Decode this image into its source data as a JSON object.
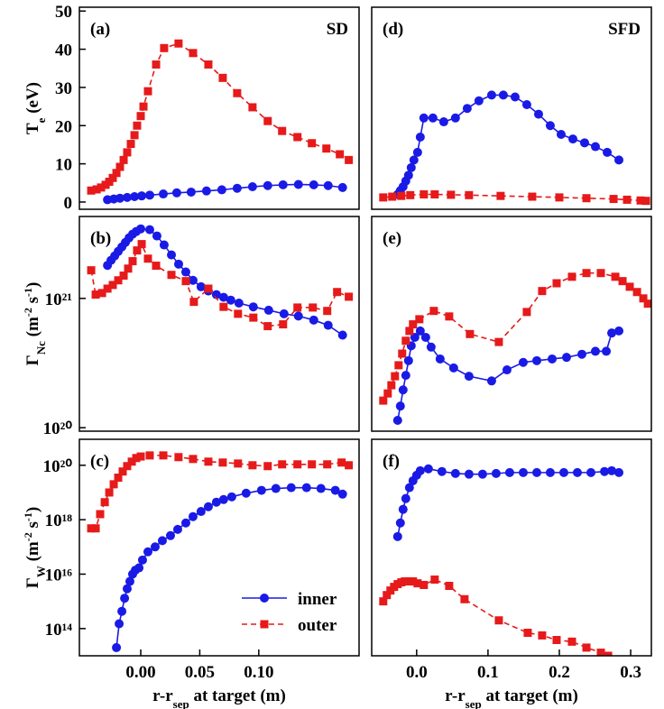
{
  "chart_data": [
    {
      "type": "line",
      "panel_label": "(a)",
      "annotation": "SD",
      "ylabel": [
        {
          "text": "T"
        },
        {
          "text": "e",
          "sub": true
        },
        {
          "text": " (eV)"
        }
      ],
      "xlim": [
        -0.052,
        0.185
      ],
      "ylim": [
        -1.9,
        51
      ],
      "yticks": [
        0,
        10,
        20,
        30,
        40,
        50
      ],
      "log": false,
      "series": [
        {
          "name": "inner",
          "color": "#1a1ae6",
          "marker": "circle",
          "dash": false,
          "x": [
            -0.0282,
            -0.0229,
            -0.0176,
            -0.0115,
            -0.0053,
            0.0008,
            0.0076,
            0.0191,
            0.0305,
            0.0427,
            0.0557,
            0.0687,
            0.0817,
            0.0947,
            0.1076,
            0.1206,
            0.1336,
            0.1466,
            0.1588,
            0.171
          ],
          "values": [
            0.6,
            0.8,
            1,
            1.2,
            1.4,
            1.6,
            1.8,
            2.1,
            2.4,
            2.6,
            2.9,
            3.2,
            3.6,
            4,
            4.3,
            4.5,
            4.6,
            4.5,
            4.3,
            3.8
          ]
        },
        {
          "name": "outer",
          "color": "#e61a1a",
          "marker": "square",
          "dash": true,
          "x": [
            -0.042,
            -0.0374,
            -0.0336,
            -0.0298,
            -0.0267,
            -0.0237,
            -0.0206,
            -0.0176,
            -0.0145,
            -0.0115,
            -0.0084,
            -0.0053,
            -0.0031,
            0,
            0.0023,
            0.0061,
            0.013,
            0.0198,
            0.032,
            0.0443,
            0.0573,
            0.0695,
            0.0817,
            0.0947,
            0.1076,
            0.1198,
            0.1328,
            0.145,
            0.1573,
            0.1687,
            0.1763
          ],
          "values": [
            3,
            3.3,
            3.8,
            4.5,
            5.3,
            6.3,
            7.6,
            9.2,
            11,
            13,
            15.2,
            17.5,
            20,
            22.5,
            25,
            29,
            36,
            40.3,
            41.5,
            39,
            36,
            32.5,
            28.5,
            24.8,
            21.2,
            18.6,
            17,
            15.4,
            14,
            12.5,
            11
          ]
        }
      ]
    },
    {
      "type": "line",
      "panel_label": "(b)",
      "ylabel": [
        {
          "text": "Γ"
        },
        {
          "text": "Nc",
          "sub": true
        },
        {
          "text": " (m"
        },
        {
          "text": "-2",
          "sup": true
        },
        {
          "text": " s"
        },
        {
          "text": "-1",
          "sup": true
        },
        {
          "text": ")"
        }
      ],
      "xlim": [
        -0.052,
        0.185
      ],
      "ylim": [
        9.4e+19,
        4.3e+21
      ],
      "yticks": [
        {
          "value": 1e+20,
          "label": "10²⁰"
        },
        {
          "value": 1e+21,
          "label": "10²¹"
        }
      ],
      "log": true,
      "series": [
        {
          "name": "inner",
          "color": "#1a1ae6",
          "marker": "circle",
          "dash": false,
          "x": [
            -0.0282,
            -0.0252,
            -0.0221,
            -0.0191,
            -0.016,
            -0.013,
            -0.0099,
            -0.0069,
            -0.0038,
            0,
            0.0076,
            0.0137,
            0.0198,
            0.026,
            0.0321,
            0.0382,
            0.0443,
            0.0511,
            0.0573,
            0.0641,
            0.0702,
            0.0763,
            0.0832,
            0.0954,
            0.1084,
            0.1214,
            0.1336,
            0.1466,
            0.1588,
            0.171
          ],
          "values": [
            1.8e+21,
            1.97e+21,
            2.13e+21,
            2.31e+21,
            2.5e+21,
            2.71e+21,
            2.94e+21,
            3.14e+21,
            3.29e+21,
            3.45e+21,
            3.4e+21,
            3.04e+21,
            2.59e+21,
            2.17e+21,
            1.84e+21,
            1.6e+21,
            1.38e+21,
            1.23e+21,
            1.14e+21,
            1.07e+21,
            1.02e+21,
            9.7e+20,
            9.2e+20,
            8.6e+20,
            8.1e+20,
            7.6e+20,
            7.3e+20,
            6.8e+20,
            6.2e+20,
            5.2e+20
          ]
        },
        {
          "name": "outer",
          "color": "#e61a1a",
          "marker": "square",
          "dash": true,
          "x": [
            -0.042,
            -0.0382,
            -0.0328,
            -0.0282,
            -0.0237,
            -0.0191,
            -0.0145,
            -0.0107,
            -0.0069,
            -0.0031,
            0.0008,
            0.0061,
            0.013,
            0.026,
            0.0382,
            0.045,
            0.0573,
            0.0702,
            0.0824,
            0.0954,
            0.1076,
            0.1206,
            0.1328,
            0.1458,
            0.158,
            0.1664,
            0.1763
          ],
          "values": [
            1.65e+21,
            1.07e+21,
            1.1e+21,
            1.19e+21,
            1.27e+21,
            1.38e+21,
            1.5e+21,
            1.7e+21,
            1.94e+21,
            2.35e+21,
            2.63e+21,
            2.03e+21,
            1.79e+21,
            1.52e+21,
            1.36e+21,
            9.4e+20,
            1.19e+21,
            8.6e+20,
            7.6e+20,
            7.1e+20,
            6.1e+20,
            6.3e+20,
            8.5e+20,
            8.5e+20,
            8e+20,
            1.12e+21,
            1.03e+21
          ]
        }
      ]
    },
    {
      "type": "line",
      "panel_label": "(c)",
      "ylabel": [
        {
          "text": "Γ"
        },
        {
          "text": "W",
          "sub": true
        },
        {
          "text": " (m"
        },
        {
          "text": "-2",
          "sup": true
        },
        {
          "text": " s"
        },
        {
          "text": "-1",
          "sup": true
        },
        {
          "text": ")"
        }
      ],
      "xlabel": [
        {
          "text": "r-r"
        },
        {
          "text": "sep",
          "sub": true
        },
        {
          "text": " at target (m)"
        }
      ],
      "xlim": [
        -0.052,
        0.185
      ],
      "xticks": [
        {
          "value": 0,
          "label": "0.00"
        },
        0.05,
        {
          "value": 0.1,
          "label": "0.10"
        }
      ],
      "ylim": [
        10000000000000.0,
        9e+20
      ],
      "yticks": [
        {
          "value": 100000000000000.0,
          "label": "10¹⁴"
        },
        {
          "value": 1e+16,
          "label": "10¹⁶"
        },
        {
          "value": 1e+18,
          "label": "10¹⁸"
        },
        {
          "value": 1e+20,
          "label": "10²⁰"
        }
      ],
      "log": true,
      "legend": "lower right",
      "series": [
        {
          "name": "inner",
          "color": "#1a1ae6",
          "marker": "circle",
          "dash": false,
          "x": [
            -0.0206,
            -0.0183,
            -0.016,
            -0.0137,
            -0.0115,
            -0.0092,
            -0.0069,
            -0.0046,
            -0.0015,
            0.0015,
            0.0061,
            0.0122,
            0.0183,
            0.0252,
            0.0313,
            0.0382,
            0.0443,
            0.0511,
            0.0573,
            0.0641,
            0.0702,
            0.0771,
            0.0893,
            0.1023,
            0.1145,
            0.1275,
            0.1405,
            0.1527,
            0.1649,
            0.171
          ],
          "values": [
            20000000000000.0,
            150000000000000.0,
            430000000000000.0,
            1300000000000000.0,
            2900000000000000.0,
            5400000000000000.0,
            1e+16,
            1.4e+16,
            1.7e+16,
            3.3e+16,
            6.6e+16,
            1e+17,
            1.7e+17,
            2.6e+17,
            4.4e+17,
            7.6e+17,
            1.3e+18,
            2e+18,
            3e+18,
            4.4e+18,
            5.5e+18,
            6.9e+18,
            9.4e+18,
            1.2e+19,
            1.4e+19,
            1.5e+19,
            1.5e+19,
            1.4e+19,
            1.2e+19,
            8.7e+18
          ]
        },
        {
          "name": "outer",
          "color": "#e61a1a",
          "marker": "square",
          "dash": true,
          "x": [
            -0.042,
            -0.0382,
            -0.0344,
            -0.0305,
            -0.0267,
            -0.0229,
            -0.0191,
            -0.0153,
            -0.0115,
            -0.0076,
            -0.0038,
            0,
            0.0076,
            0.0191,
            0.032,
            0.0443,
            0.0573,
            0.0695,
            0.0824,
            0.0947,
            0.1076,
            0.1198,
            0.1328,
            0.145,
            0.158,
            0.1702,
            0.1763
          ],
          "values": [
            4.8e+17,
            4.8e+17,
            1.6e+18,
            4.4e+18,
            1e+19,
            2e+19,
            3.5e+19,
            5.9e+19,
            9.3e+19,
            1.36e+20,
            1.84e+20,
            2.1e+20,
            2.3e+20,
            2.3e+20,
            1.99e+20,
            1.7e+20,
            1.36e+20,
            1.26e+20,
            1.16e+20,
            1e+20,
            9.3e+19,
            1.08e+20,
            1.08e+20,
            1.08e+20,
            1.08e+20,
            1.26e+20,
            1e+20
          ]
        }
      ]
    },
    {
      "type": "line",
      "panel_label": "(d)",
      "annotation": "SFD",
      "xlim": [
        -0.063,
        0.329
      ],
      "ylim": [
        -1.9,
        51
      ],
      "log": false,
      "series": [
        {
          "name": "inner",
          "color": "#1a1ae6",
          "marker": "circle",
          "dash": false,
          "x": [
            -0.0266,
            -0.0228,
            -0.019,
            -0.0152,
            -0.0114,
            -0.0076,
            -0.0038,
            0.0013,
            0.0051,
            0.0101,
            0.0228,
            0.038,
            0.0544,
            0.0709,
            0.0873,
            0.1051,
            0.1215,
            0.138,
            0.1544,
            0.1709,
            0.1873,
            0.2025,
            0.219,
            0.2354,
            0.2506,
            0.2671,
            0.2835
          ],
          "values": [
            2,
            3,
            4,
            5.5,
            7,
            9,
            11,
            13,
            17,
            22,
            22,
            21,
            22,
            24.5,
            26.5,
            28,
            28,
            27.5,
            25.5,
            23,
            20,
            17.7,
            16.5,
            15.5,
            14.5,
            13,
            11
          ]
        },
        {
          "name": "outer",
          "color": "#e61a1a",
          "marker": "square",
          "dash": true,
          "x": [
            -0.0468,
            -0.0342,
            -0.0215,
            -0.0089,
            0.0101,
            0.0253,
            0.0481,
            0.0734,
            0.1177,
            0.162,
            0.2,
            0.238,
            0.276,
            0.2949,
            0.3139,
            0.3215
          ],
          "values": [
            1.2,
            1.4,
            1.6,
            1.8,
            2,
            2,
            1.9,
            1.8,
            1.6,
            1.4,
            1.2,
            1,
            0.8,
            0.6,
            0.4,
            0.3
          ]
        }
      ]
    },
    {
      "type": "line",
      "panel_label": "(e)",
      "xlim": [
        -0.063,
        0.329
      ],
      "ylim": [
        9.4e+19,
        4.3e+21
      ],
      "log": true,
      "series": [
        {
          "name": "inner",
          "color": "#1a1ae6",
          "marker": "circle",
          "dash": false,
          "x": [
            -0.0266,
            -0.0228,
            -0.019,
            -0.0152,
            -0.0114,
            -0.0076,
            -0.0025,
            0.0051,
            0.0127,
            0.0203,
            0.0329,
            0.0519,
            0.0734,
            0.1051,
            0.1266,
            0.1494,
            0.1684,
            0.1899,
            0.2101,
            0.2316,
            0.2506,
            0.2658,
            0.2734,
            0.2835
          ],
          "values": [
            1.14e+20,
            1.47e+20,
            1.96e+20,
            2.54e+20,
            3.3e+20,
            4.3e+20,
            5e+20,
            5.6e+20,
            5e+20,
            4.2e+20,
            3.4e+20,
            2.9e+20,
            2.5e+20,
            2.3e+20,
            2.8e+20,
            3.2e+20,
            3.3e+20,
            3.4e+20,
            3.5e+20,
            3.7e+20,
            3.9e+20,
            3.9e+20,
            5.4e+20,
            5.6e+20
          ]
        },
        {
          "name": "outer",
          "color": "#e61a1a",
          "marker": "square",
          "dash": true,
          "x": [
            -0.0468,
            -0.0405,
            -0.0354,
            -0.0304,
            -0.0253,
            -0.0203,
            -0.0152,
            -0.0101,
            -0.0051,
            0.0038,
            0.0241,
            0.0456,
            0.0747,
            0.1152,
            0.1544,
            0.1759,
            0.1962,
            0.2177,
            0.238,
            0.2582,
            0.2785,
            0.2886,
            0.2987,
            0.3089,
            0.3177,
            0.3241
          ],
          "values": [
            1.62e+20,
            1.84e+20,
            2.13e+20,
            2.5e+20,
            3.04e+20,
            3.74e+20,
            4.7e+20,
            5.6e+20,
            6.3e+20,
            6.9e+20,
            8e+20,
            7.25e+20,
            5.3e+20,
            4.6e+20,
            7.85e+20,
            1.14e+21,
            1.31e+21,
            1.47e+21,
            1.57e+21,
            1.57e+21,
            1.47e+21,
            1.36e+21,
            1.23e+21,
            1.12e+21,
            1e+21,
            9.1e+20
          ]
        }
      ]
    },
    {
      "type": "line",
      "panel_label": "(f)",
      "xlabel": [
        {
          "text": "r-r"
        },
        {
          "text": "sep",
          "sub": true
        },
        {
          "text": " at target (m)"
        }
      ],
      "xlim": [
        -0.063,
        0.329
      ],
      "xticks": [
        {
          "value": 0,
          "label": "0.0"
        },
        0.1,
        0.2,
        0.3
      ],
      "ylim": [
        10000000000000.0,
        9e+20
      ],
      "log": true,
      "series": [
        {
          "name": "inner",
          "color": "#1a1ae6",
          "marker": "circle",
          "dash": false,
          "x": [
            -0.0266,
            -0.0228,
            -0.019,
            -0.0152,
            -0.0101,
            -0.0051,
            0,
            0.0051,
            0.0165,
            0.0354,
            0.0544,
            0.0734,
            0.0924,
            0.1114,
            0.1304,
            0.1494,
            0.1684,
            0.1873,
            0.2063,
            0.2253,
            0.2443,
            0.2633,
            0.2734,
            0.2835
          ],
          "values": [
            2.4e+17,
            7.6e+17,
            2.4e+18,
            6e+18,
            1.5e+19,
            2.7e+19,
            4.3e+19,
            6.3e+19,
            7.4e+19,
            5.9e+19,
            5e+19,
            4.7e+19,
            4.7e+19,
            5e+19,
            5.4e+19,
            5.4e+19,
            5.4e+19,
            5.4e+19,
            5.4e+19,
            5.4e+19,
            5.4e+19,
            5.9e+19,
            6.3e+19,
            5.4e+19
          ]
        },
        {
          "name": "outer",
          "color": "#e61a1a",
          "marker": "square",
          "dash": true,
          "x": [
            -0.0468,
            -0.0418,
            -0.0367,
            -0.0316,
            -0.0266,
            -0.0215,
            -0.0165,
            -0.0114,
            -0.0051,
            0.0013,
            0.0101,
            0.0253,
            0.0456,
            0.0671,
            0.1152,
            0.1557,
            0.1759,
            0.1962,
            0.2177,
            0.238,
            0.2582,
            0.2684
          ],
          "values": [
            1000000000000000.0,
            1700000000000000.0,
            2500000000000000.0,
            3400000000000000.0,
            4300000000000000.0,
            5000000000000000.0,
            5400000000000000.0,
            5400000000000000.0,
            5400000000000000.0,
            4600000000000000.0,
            4000000000000000.0,
            6300000000000000.0,
            3700000000000000.0,
            1200000000000000.0,
            200000000000000.0,
            70000000000000.0,
            56000000000000.0,
            38000000000000.0,
            33000000000000.0,
            20000000000000.0,
            13000000000000.0,
            10000000000000.0
          ]
        }
      ]
    }
  ]
}
